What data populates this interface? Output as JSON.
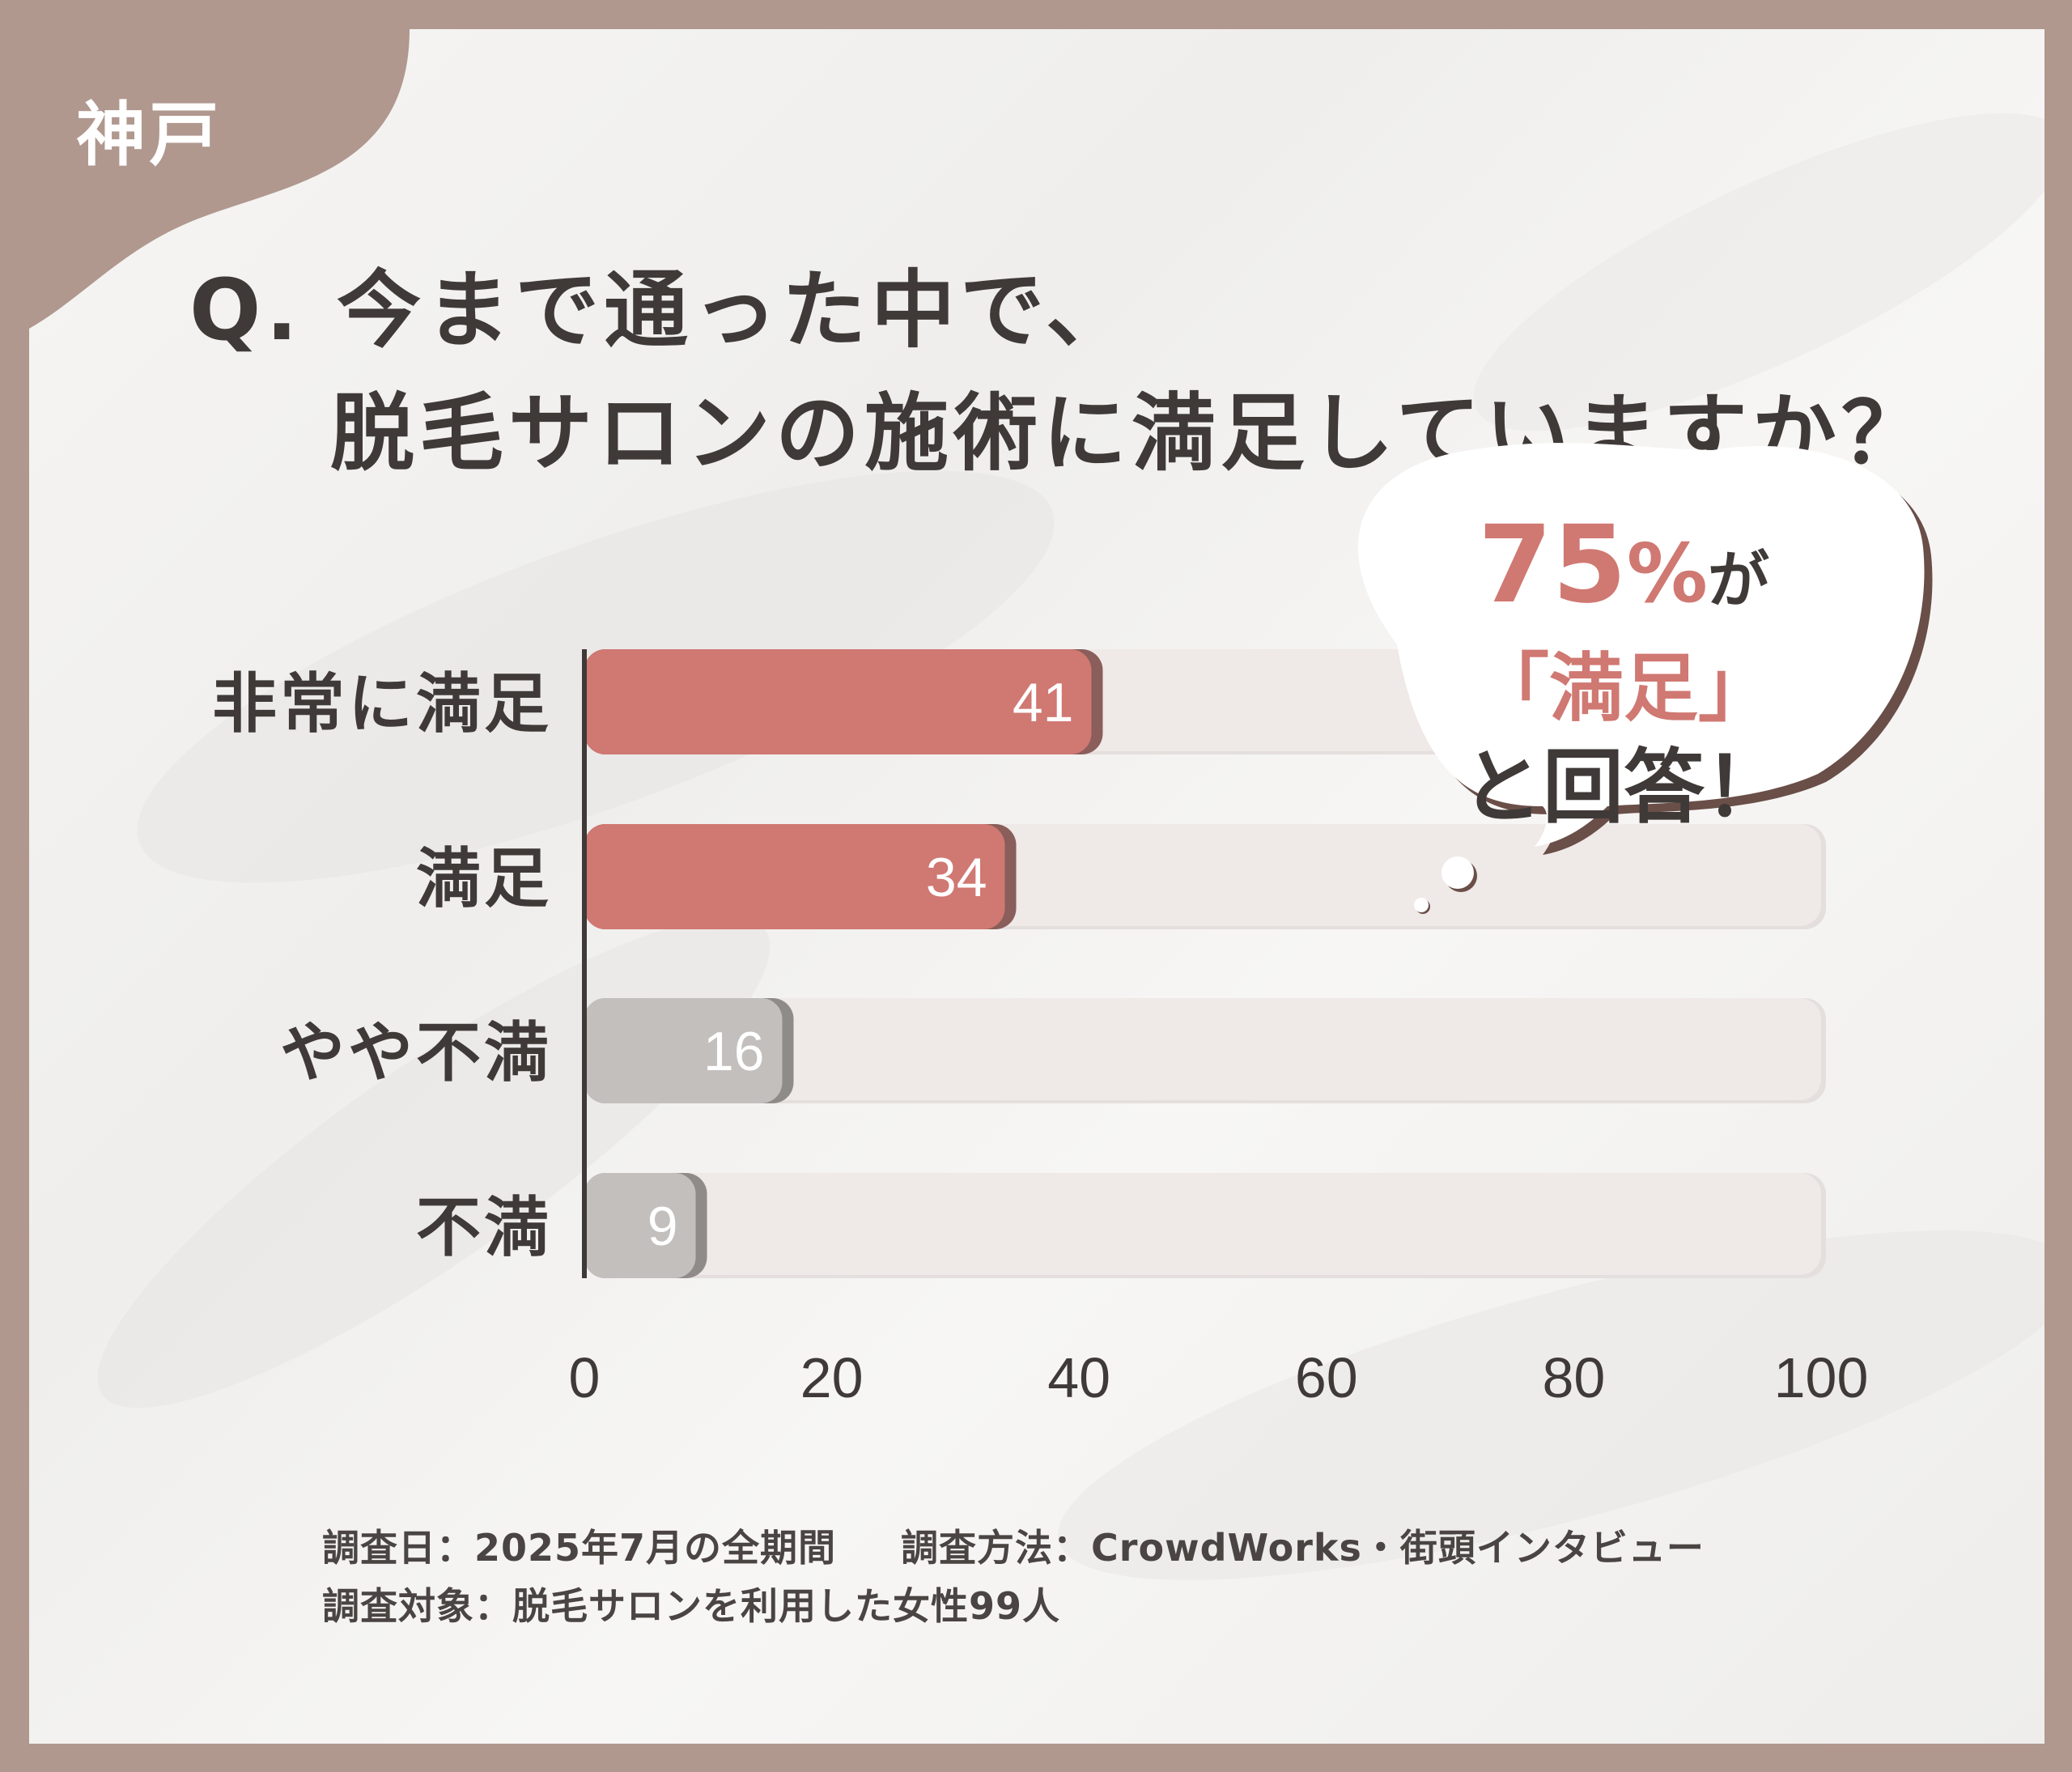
{
  "region": "神戸",
  "question": {
    "line1": "Q. 今まで通った中で、",
    "line2": "脱毛サロンの施術に満足していますか？"
  },
  "callout": {
    "percent": "75",
    "percent_sign": "%",
    "particle": "が",
    "quote": "「満足」",
    "answer": "と回答！"
  },
  "colors": {
    "satisfied": "#d07872",
    "unsatisfied": "#c2bfbd",
    "satisfied_shadow": "#8a5e5a",
    "unsatisfied_shadow": "#8f8b89",
    "track": "#efe9e7",
    "frame": "#b0988f",
    "text": "#3f3a38"
  },
  "chart_data": {
    "type": "bar",
    "orientation": "horizontal",
    "categories": [
      "非常に満足",
      "満足",
      "やや不満",
      "不満"
    ],
    "values": [
      41,
      34,
      16,
      9
    ],
    "xlim": [
      0,
      100
    ],
    "xticks": [
      "0",
      "20",
      "40",
      "60",
      "80",
      "100"
    ],
    "title": "",
    "xlabel": "",
    "ylabel": ""
  },
  "footer": {
    "line1_date": "調査日：2025年7月の全期間",
    "line1_method": "調査方法：CrowdWorks・街頭インタビュー",
    "line2": "調査対象：脱毛サロンを利用した女性99人"
  }
}
